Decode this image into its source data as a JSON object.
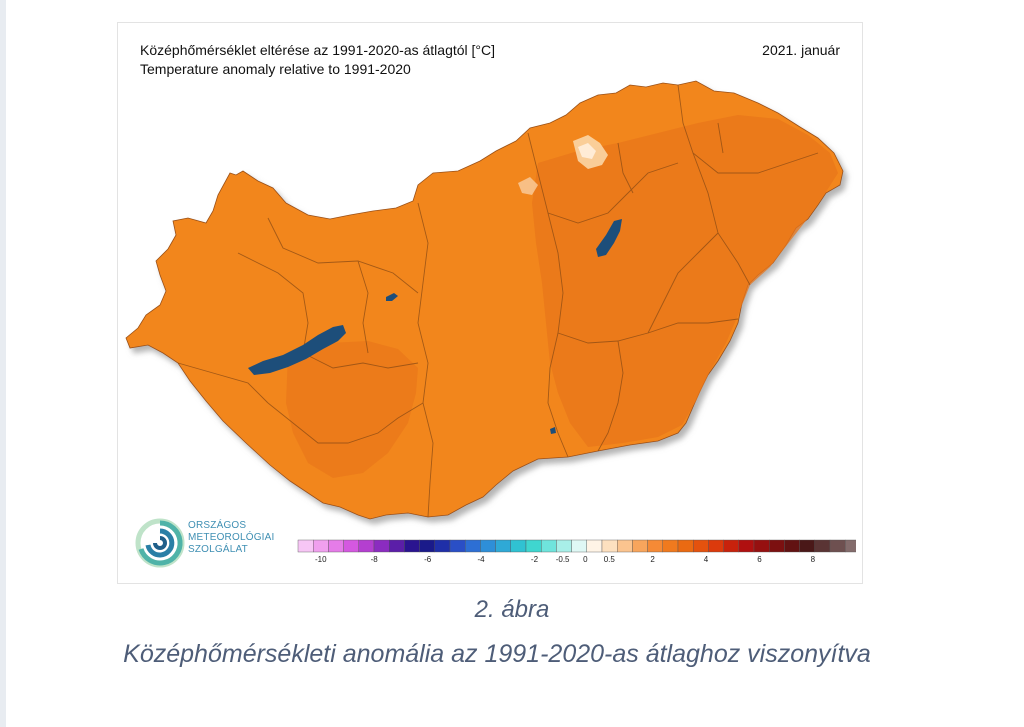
{
  "map": {
    "title_hu": "Középhőmérséklet eltérése az 1991-2020-as átlagtól [°C]",
    "title_en": "Temperature anomaly relative to 1991-2020",
    "date": "2021. január"
  },
  "org": {
    "line1": "ORSZÁGOS",
    "line2": "METEOROLÓGIAI",
    "line3": "SZOLGÁLAT"
  },
  "legend": {
    "colors": [
      "#f7c6f5",
      "#f0a0ee",
      "#e57ce8",
      "#d458e0",
      "#b43fd0",
      "#8b2cc0",
      "#5b1ea8",
      "#2a1490",
      "#1a1a8a",
      "#1f2fa8",
      "#2a4fc6",
      "#2d6fd4",
      "#2e8fd8",
      "#2fa9d6",
      "#30c2d2",
      "#3fd6cf",
      "#6fe4dc",
      "#a8efe8",
      "#dff8f5",
      "#fff4e6",
      "#fde0bf",
      "#fbc48f",
      "#f8a55c",
      "#f58a36",
      "#f07a1e",
      "#ea6a12",
      "#e4520e",
      "#dc3a0c",
      "#c8220c",
      "#b01010",
      "#961010",
      "#7c1010",
      "#621212",
      "#4a1818",
      "#5a3434",
      "#6e5050",
      "#846c6c"
    ],
    "ticks": [
      "-10",
      "-8",
      "-6",
      "-4",
      "-2",
      "-0.5",
      "0",
      "0.5",
      "2",
      "4",
      "6",
      "8"
    ]
  },
  "caption": {
    "number": "2. ábra",
    "text": "Középhőmérsékleti anomália az 1991-2020-as átlaghoz viszonyítva"
  },
  "colors": {
    "land": "#f2861e",
    "land_dark": "#e8761a",
    "water": "#1d4e7a",
    "border": "#8a4a14",
    "caption": "#4e5d78"
  }
}
